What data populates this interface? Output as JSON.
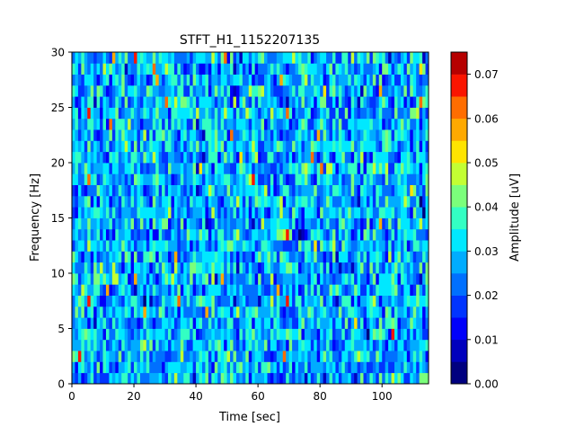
{
  "chart_data": {
    "type": "heatmap",
    "title": "STFT_H1_1152207135",
    "xlabel": "Time [sec]",
    "ylabel": "Frequency [Hz]",
    "xlim": [
      0,
      115
    ],
    "ylim": [
      0,
      30
    ],
    "x_ticks": [
      0,
      20,
      40,
      60,
      80,
      100
    ],
    "y_ticks": [
      0,
      5,
      10,
      15,
      20,
      25,
      30
    ],
    "grid": false,
    "colorbar": {
      "label": "Amplitude [uV]",
      "range": [
        0,
        0.075
      ],
      "ticks": [
        "0.00",
        "0.01",
        "0.02",
        "0.03",
        "0.04",
        "0.05",
        "0.06",
        "0.07"
      ],
      "levels": 15,
      "colormap": "jet",
      "colors": [
        "#00007f",
        "#0000bd",
        "#0000fa",
        "#0034ff",
        "#0070ff",
        "#00acff",
        "#00e8ff",
        "#33ffc3",
        "#7bff7b",
        "#c3ff33",
        "#ffe400",
        "#ffa900",
        "#ff6d00",
        "#fa1500",
        "#b60000"
      ]
    },
    "grid_shape": {
      "time_bins": 115,
      "freq_bins": 30
    },
    "value_distribution": {
      "mean": 0.022,
      "typical_range": [
        0.005,
        0.045
      ],
      "max": 0.07
    }
  }
}
